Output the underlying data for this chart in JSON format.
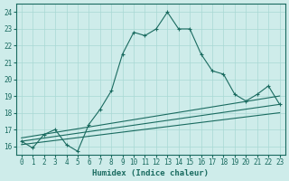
{
  "xlabel": "Humidex (Indice chaleur)",
  "bg_color": "#ceecea",
  "grid_color": "#a8d8d4",
  "line_color": "#1a6b60",
  "xlim": [
    -0.5,
    23.5
  ],
  "ylim": [
    15.5,
    24.5
  ],
  "xticks": [
    0,
    1,
    2,
    3,
    4,
    5,
    6,
    7,
    8,
    9,
    10,
    11,
    12,
    13,
    14,
    15,
    16,
    17,
    18,
    19,
    20,
    21,
    22,
    23
  ],
  "yticks": [
    16,
    17,
    18,
    19,
    20,
    21,
    22,
    23,
    24
  ],
  "main_x": [
    0,
    1,
    2,
    3,
    4,
    5,
    6,
    7,
    8,
    9,
    10,
    11,
    12,
    13,
    14,
    15,
    16,
    17,
    18,
    19,
    20,
    21,
    22,
    23
  ],
  "main_y": [
    16.3,
    15.9,
    16.7,
    17.0,
    16.1,
    15.7,
    17.3,
    18.2,
    19.3,
    21.5,
    22.8,
    22.6,
    23.0,
    24.0,
    23.0,
    23.0,
    21.5,
    20.5,
    20.3,
    19.1,
    18.7,
    19.1,
    19.6,
    18.5
  ],
  "reg1_start": 16.5,
  "reg1_end": 19.0,
  "reg2_start": 16.3,
  "reg2_end": 18.5,
  "reg3_start": 16.1,
  "reg3_end": 18.0
}
